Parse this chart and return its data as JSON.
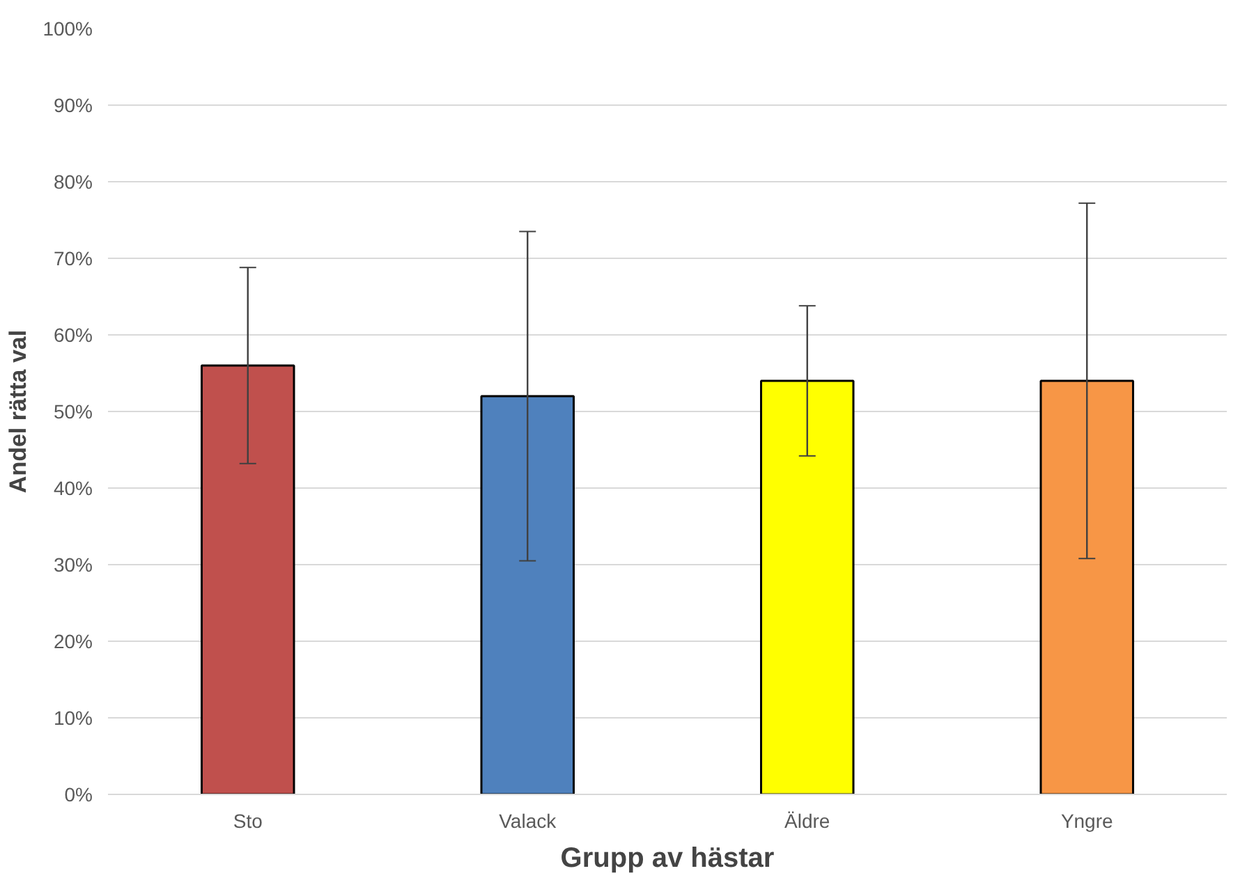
{
  "chart_data": {
    "type": "bar",
    "xlabel": "Grupp av hästar",
    "ylabel": "Andel rätta val",
    "categories": [
      "Sto",
      "Valack",
      "Äldre",
      "Yngre"
    ],
    "values": [
      56,
      52,
      54,
      54
    ],
    "colors": [
      "#c0504d",
      "#4f81bd",
      "#ffff00",
      "#f79646"
    ],
    "errors": [
      12.8,
      21.5,
      9.8,
      23.2
    ],
    "ylim": [
      0,
      100
    ],
    "yticks": [
      {
        "value": 0,
        "label": "0%"
      },
      {
        "value": 10,
        "label": "10%"
      },
      {
        "value": 20,
        "label": "20%"
      },
      {
        "value": 30,
        "label": "30%"
      },
      {
        "value": 40,
        "label": "40%"
      },
      {
        "value": 50,
        "label": "50%"
      },
      {
        "value": 60,
        "label": "60%"
      },
      {
        "value": 70,
        "label": "70%"
      },
      {
        "value": 80,
        "label": "80%"
      },
      {
        "value": 90,
        "label": "90%"
      },
      {
        "value": 100,
        "label": "100%"
      }
    ],
    "grid": "y"
  }
}
